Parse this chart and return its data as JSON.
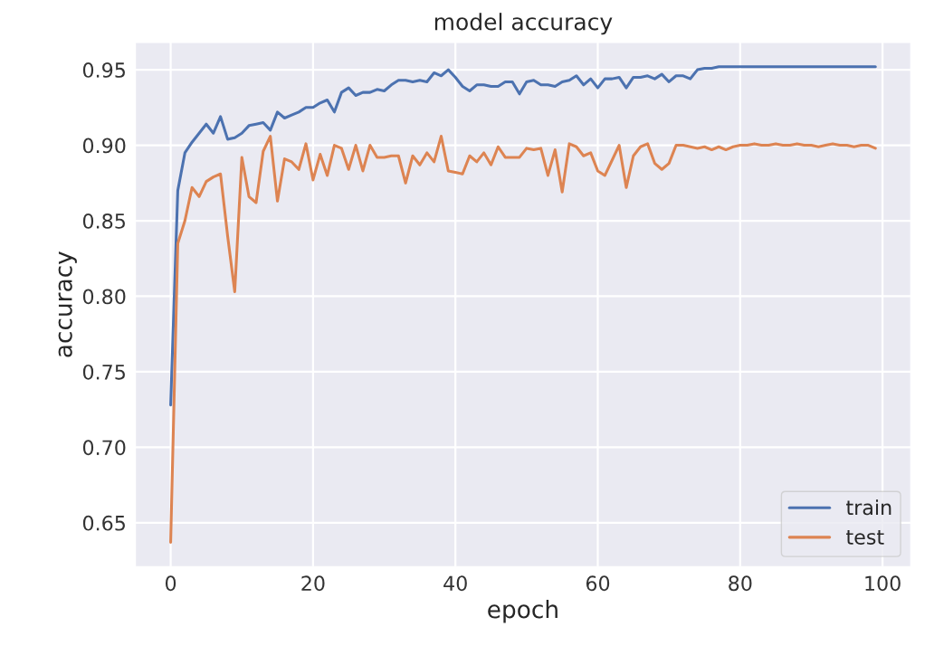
{
  "chart_data": {
    "type": "line",
    "title": "model accuracy",
    "xlabel": "epoch",
    "ylabel": "accuracy",
    "x": [
      0,
      1,
      2,
      3,
      4,
      5,
      6,
      7,
      8,
      9,
      10,
      11,
      12,
      13,
      14,
      15,
      16,
      17,
      18,
      19,
      20,
      21,
      22,
      23,
      24,
      25,
      26,
      27,
      28,
      29,
      30,
      31,
      32,
      33,
      34,
      35,
      36,
      37,
      38,
      39,
      40,
      41,
      42,
      43,
      44,
      45,
      46,
      47,
      48,
      49,
      50,
      51,
      52,
      53,
      54,
      55,
      56,
      57,
      58,
      59,
      60,
      61,
      62,
      63,
      64,
      65,
      66,
      67,
      68,
      69,
      70,
      71,
      72,
      73,
      74,
      75,
      76,
      77,
      78,
      79,
      80,
      81,
      82,
      83,
      84,
      85,
      86,
      87,
      88,
      89,
      90,
      91,
      92,
      93,
      94,
      95,
      96,
      97,
      98,
      99
    ],
    "series": [
      {
        "name": "train",
        "color": "#4c72b0",
        "values": [
          0.728,
          0.87,
          0.895,
          0.902,
          0.908,
          0.914,
          0.908,
          0.919,
          0.904,
          0.905,
          0.908,
          0.913,
          0.914,
          0.915,
          0.91,
          0.922,
          0.918,
          0.92,
          0.922,
          0.925,
          0.925,
          0.928,
          0.93,
          0.922,
          0.935,
          0.938,
          0.933,
          0.935,
          0.935,
          0.937,
          0.936,
          0.94,
          0.943,
          0.943,
          0.942,
          0.943,
          0.942,
          0.948,
          0.946,
          0.95,
          0.945,
          0.939,
          0.936,
          0.94,
          0.94,
          0.939,
          0.939,
          0.942,
          0.942,
          0.934,
          0.942,
          0.943,
          0.94,
          0.94,
          0.939,
          0.942,
          0.943,
          0.946,
          0.94,
          0.944,
          0.938,
          0.944,
          0.944,
          0.945,
          0.938,
          0.945,
          0.945,
          0.946,
          0.944,
          0.947,
          0.942,
          0.946,
          0.946,
          0.944,
          0.95,
          0.951,
          0.951,
          0.952,
          0.952,
          0.952,
          0.952,
          0.952,
          0.952,
          0.952,
          0.952,
          0.952,
          0.952,
          0.952,
          0.952,
          0.952,
          0.952,
          0.952,
          0.952,
          0.952,
          0.952,
          0.952,
          0.952,
          0.952,
          0.952,
          0.952
        ]
      },
      {
        "name": "test",
        "color": "#dd8452",
        "values": [
          0.637,
          0.835,
          0.85,
          0.872,
          0.866,
          0.876,
          0.879,
          0.881,
          0.84,
          0.803,
          0.892,
          0.866,
          0.862,
          0.896,
          0.906,
          0.863,
          0.891,
          0.889,
          0.884,
          0.901,
          0.877,
          0.894,
          0.88,
          0.9,
          0.898,
          0.884,
          0.9,
          0.883,
          0.9,
          0.892,
          0.892,
          0.893,
          0.893,
          0.875,
          0.893,
          0.887,
          0.895,
          0.889,
          0.906,
          0.883,
          0.882,
          0.881,
          0.893,
          0.889,
          0.895,
          0.887,
          0.899,
          0.892,
          0.892,
          0.892,
          0.898,
          0.897,
          0.898,
          0.88,
          0.897,
          0.869,
          0.901,
          0.899,
          0.893,
          0.895,
          0.883,
          0.88,
          0.89,
          0.9,
          0.872,
          0.893,
          0.899,
          0.901,
          0.888,
          0.884,
          0.888,
          0.9,
          0.9,
          0.899,
          0.898,
          0.899,
          0.897,
          0.899,
          0.897,
          0.899,
          0.9,
          0.9,
          0.901,
          0.9,
          0.9,
          0.901,
          0.9,
          0.9,
          0.901,
          0.9,
          0.9,
          0.899,
          0.9,
          0.901,
          0.9,
          0.9,
          0.899,
          0.9,
          0.9,
          0.898
        ]
      }
    ],
    "xlim": [
      -4.95,
      103.95
    ],
    "ylim": [
      0.621,
      0.968
    ],
    "xticks": [
      0,
      20,
      40,
      60,
      80,
      100
    ],
    "yticks": [
      0.65,
      {
        "value": 0.7,
        "label": "0.70"
      },
      0.75,
      {
        "value": 0.8,
        "label": "0.80"
      },
      0.85,
      {
        "value": 0.9,
        "label": "0.90"
      },
      0.95
    ],
    "grid": true,
    "legend": "bottom right",
    "marker": "none",
    "line_style": "solid"
  }
}
